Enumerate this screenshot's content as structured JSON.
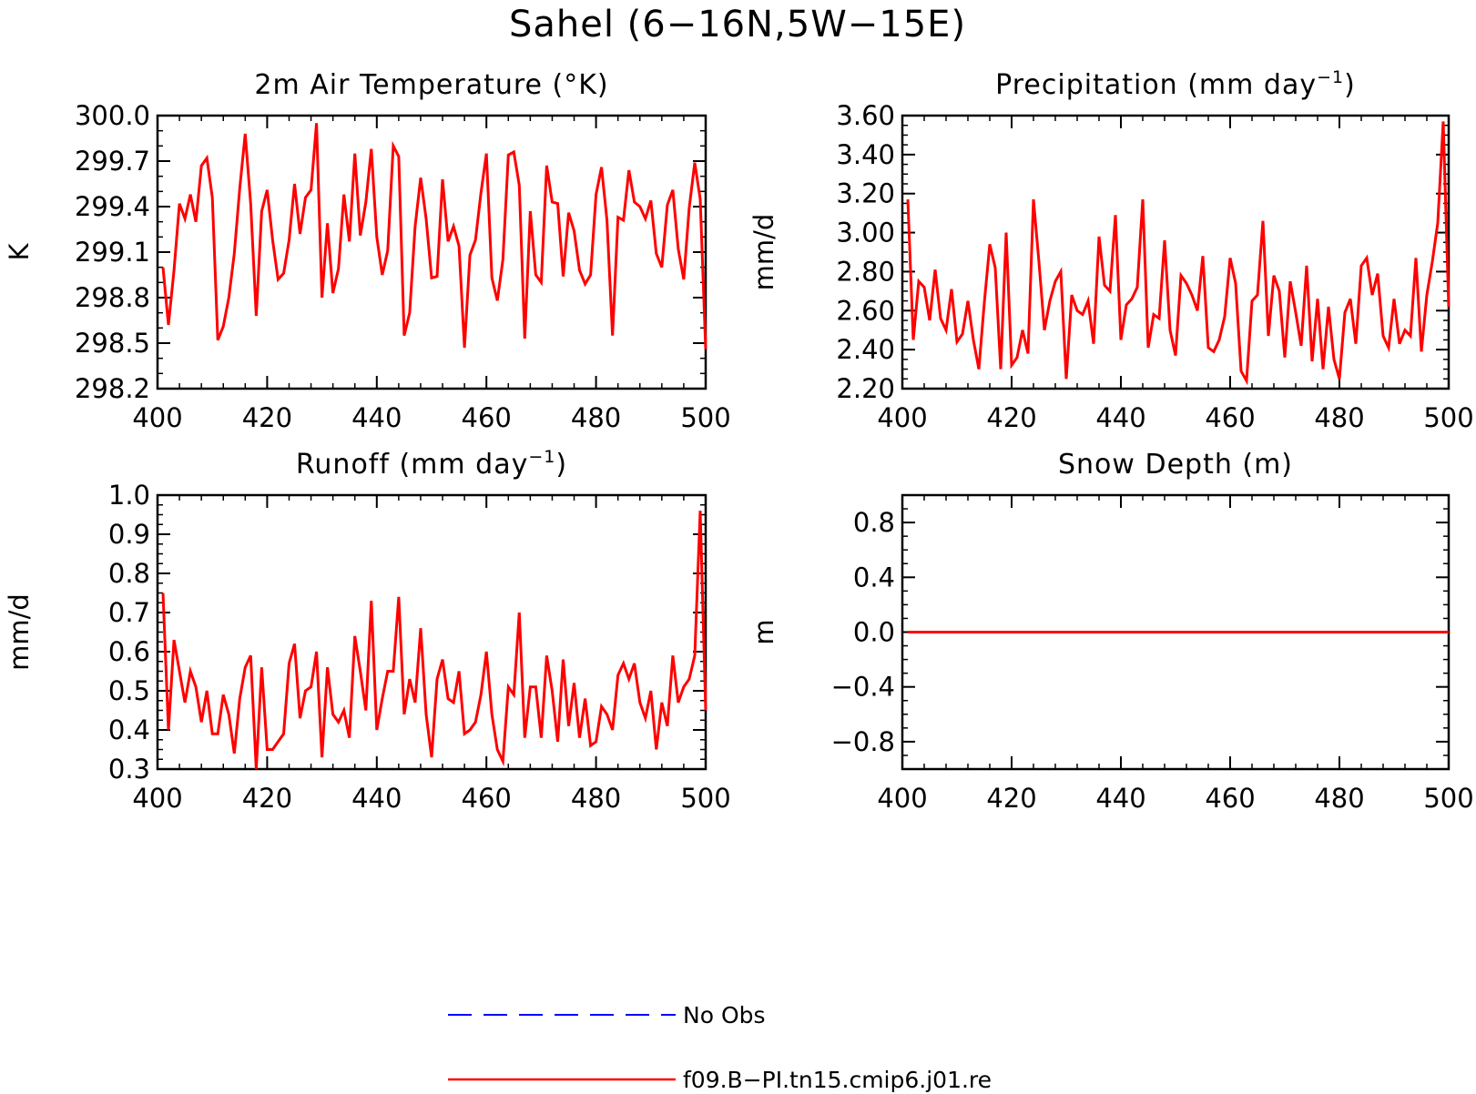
{
  "figure": {
    "title": "Sahel (6−16N,5W−15E)"
  },
  "colors": {
    "model_series": "#ff0000",
    "obs_series": "#0000ff",
    "axes": "#000000"
  },
  "legend": {
    "items": [
      {
        "label": "No Obs",
        "style": "dashed",
        "color": "#0000ff"
      },
      {
        "label": "f09.B−PI.tn15.cmip6.j01.re",
        "style": "solid",
        "color": "#ff0000"
      }
    ]
  },
  "chart_data": [
    {
      "type": "line",
      "title": "2m Air Temperature (°K)",
      "title_superscript": "",
      "title_suffix": "",
      "xlabel": "",
      "ylabel": "K",
      "xlim": [
        400,
        500
      ],
      "ylim": [
        298.2,
        300.0
      ],
      "xticks": [
        400,
        420,
        440,
        460,
        480,
        500
      ],
      "yticks": [
        298.2,
        298.5,
        298.8,
        299.1,
        299.4,
        299.7,
        300.0
      ],
      "ytick_labels": [
        "298.2",
        "298.5",
        "298.8",
        "299.1",
        "299.4",
        "299.7",
        "300.0"
      ],
      "x_minor_step": 4,
      "y_minor_step": 0.1,
      "grid": false,
      "series": [
        {
          "name": "f09.B−PI.tn15.cmip6.j01.re",
          "x_start": 401,
          "x_step": 1,
          "values": [
            299.0,
            298.62,
            298.98,
            299.42,
            299.32,
            299.48,
            299.3,
            299.67,
            299.72,
            299.46,
            298.52,
            298.61,
            298.8,
            299.09,
            299.52,
            299.88,
            299.42,
            298.68,
            299.37,
            299.51,
            299.18,
            298.92,
            298.96,
            299.18,
            299.55,
            299.22,
            299.46,
            299.51,
            299.95,
            298.8,
            299.29,
            298.83,
            298.99,
            299.48,
            299.17,
            299.75,
            299.21,
            299.43,
            299.78,
            299.2,
            298.95,
            299.11,
            299.8,
            299.73,
            298.55,
            298.7,
            299.27,
            299.59,
            299.32,
            298.93,
            298.94,
            299.58,
            299.17,
            299.27,
            299.14,
            298.47,
            299.08,
            299.18,
            299.49,
            299.75,
            298.93,
            298.78,
            299.05,
            299.74,
            299.76,
            299.54,
            298.53,
            299.37,
            298.95,
            298.9,
            299.67,
            299.43,
            299.42,
            298.94,
            299.36,
            299.24,
            298.98,
            298.89,
            298.95,
            299.48,
            299.66,
            299.31,
            298.55,
            299.33,
            299.31,
            299.64,
            299.43,
            299.4,
            299.32,
            299.44,
            299.09,
            299.0,
            299.41,
            299.51,
            299.12,
            298.92,
            299.39,
            299.69,
            299.45,
            298.46
          ]
        }
      ]
    },
    {
      "type": "line",
      "title": "Precipitation (mm day",
      "title_superscript": "−1",
      "title_suffix": ")",
      "xlabel": "",
      "ylabel": "mm/d",
      "xlim": [
        400,
        500
      ],
      "ylim": [
        2.2,
        3.6
      ],
      "xticks": [
        400,
        420,
        440,
        460,
        480,
        500
      ],
      "yticks": [
        2.2,
        2.4,
        2.6,
        2.8,
        3.0,
        3.2,
        3.4,
        3.6
      ],
      "ytick_labels": [
        "2.20",
        "2.40",
        "2.60",
        "2.80",
        "3.00",
        "3.20",
        "3.40",
        "3.60"
      ],
      "x_minor_step": 4,
      "y_minor_step": 0.05,
      "grid": false,
      "series": [
        {
          "name": "f09.B−PI.tn15.cmip6.j01.re",
          "x_start": 401,
          "x_step": 1,
          "values": [
            3.17,
            2.45,
            2.75,
            2.72,
            2.55,
            2.81,
            2.56,
            2.5,
            2.71,
            2.44,
            2.48,
            2.65,
            2.45,
            2.3,
            2.64,
            2.94,
            2.82,
            2.3,
            3.0,
            2.32,
            2.36,
            2.5,
            2.38,
            3.17,
            2.85,
            2.5,
            2.65,
            2.75,
            2.8,
            2.25,
            2.68,
            2.6,
            2.58,
            2.65,
            2.43,
            2.98,
            2.73,
            2.7,
            3.09,
            2.45,
            2.63,
            2.66,
            2.72,
            3.17,
            2.41,
            2.58,
            2.56,
            2.96,
            2.5,
            2.37,
            2.78,
            2.74,
            2.68,
            2.6,
            2.88,
            2.41,
            2.39,
            2.45,
            2.57,
            2.87,
            2.74,
            2.29,
            2.24,
            2.65,
            2.68,
            3.06,
            2.47,
            2.78,
            2.7,
            2.36,
            2.75,
            2.59,
            2.42,
            2.83,
            2.34,
            2.66,
            2.3,
            2.62,
            2.35,
            2.25,
            2.59,
            2.66,
            2.43,
            2.83,
            2.87,
            2.68,
            2.79,
            2.47,
            2.41,
            2.66,
            2.43,
            2.5,
            2.47,
            2.87,
            2.39,
            2.68,
            2.85,
            3.05,
            3.57,
            2.62
          ]
        }
      ]
    },
    {
      "type": "line",
      "title": "Runoff (mm day",
      "title_superscript": "−1",
      "title_suffix": ")",
      "xlabel": "",
      "ylabel": "mm/d",
      "xlim": [
        400,
        500
      ],
      "ylim": [
        0.3,
        1.0
      ],
      "xticks": [
        400,
        420,
        440,
        460,
        480,
        500
      ],
      "yticks": [
        0.3,
        0.4,
        0.5,
        0.6,
        0.7,
        0.8,
        0.9,
        1.0
      ],
      "ytick_labels": [
        "0.3",
        "0.4",
        "0.5",
        "0.6",
        "0.7",
        "0.8",
        "0.9",
        "1.0"
      ],
      "x_minor_step": 4,
      "y_minor_step": 0.025,
      "grid": false,
      "series": [
        {
          "name": "f09.B−PI.tn15.cmip6.j01.re",
          "x_start": 401,
          "x_step": 1,
          "values": [
            0.75,
            0.4,
            0.63,
            0.55,
            0.47,
            0.55,
            0.51,
            0.42,
            0.5,
            0.39,
            0.39,
            0.49,
            0.44,
            0.34,
            0.48,
            0.56,
            0.59,
            0.3,
            0.56,
            0.35,
            0.35,
            0.37,
            0.39,
            0.57,
            0.62,
            0.43,
            0.5,
            0.51,
            0.6,
            0.33,
            0.56,
            0.44,
            0.42,
            0.45,
            0.38,
            0.64,
            0.55,
            0.45,
            0.73,
            0.4,
            0.48,
            0.55,
            0.55,
            0.74,
            0.44,
            0.53,
            0.47,
            0.66,
            0.44,
            0.33,
            0.53,
            0.58,
            0.48,
            0.47,
            0.55,
            0.39,
            0.4,
            0.42,
            0.49,
            0.6,
            0.44,
            0.35,
            0.32,
            0.51,
            0.49,
            0.7,
            0.38,
            0.51,
            0.51,
            0.38,
            0.59,
            0.5,
            0.37,
            0.58,
            0.41,
            0.52,
            0.38,
            0.48,
            0.36,
            0.37,
            0.46,
            0.44,
            0.4,
            0.54,
            0.57,
            0.53,
            0.57,
            0.47,
            0.43,
            0.5,
            0.35,
            0.47,
            0.41,
            0.59,
            0.47,
            0.51,
            0.53,
            0.59,
            0.96,
            0.45
          ]
        }
      ]
    },
    {
      "type": "line",
      "title": "Snow Depth (m)",
      "title_superscript": "",
      "title_suffix": "",
      "xlabel": "",
      "ylabel": "m",
      "xlim": [
        400,
        500
      ],
      "ylim": [
        -1.0,
        1.0
      ],
      "xticks": [
        400,
        420,
        440,
        460,
        480,
        500
      ],
      "yticks": [
        -0.8,
        -0.4,
        0.0,
        0.4,
        0.8
      ],
      "ytick_labels": [
        "−0.8",
        "−0.4",
        "0.0",
        "0.4",
        "0.8"
      ],
      "x_minor_step": 4,
      "y_minor_step": 0.1,
      "grid": false,
      "series": [
        {
          "name": "f09.B−PI.tn15.cmip6.j01.re",
          "x_start": 401,
          "x_step": 1,
          "values": [
            0,
            0,
            0,
            0,
            0,
            0,
            0,
            0,
            0,
            0,
            0,
            0,
            0,
            0,
            0,
            0,
            0,
            0,
            0,
            0,
            0,
            0,
            0,
            0,
            0,
            0,
            0,
            0,
            0,
            0,
            0,
            0,
            0,
            0,
            0,
            0,
            0,
            0,
            0,
            0,
            0,
            0,
            0,
            0,
            0,
            0,
            0,
            0,
            0,
            0,
            0,
            0,
            0,
            0,
            0,
            0,
            0,
            0,
            0,
            0,
            0,
            0,
            0,
            0,
            0,
            0,
            0,
            0,
            0,
            0,
            0,
            0,
            0,
            0,
            0,
            0,
            0,
            0,
            0,
            0,
            0,
            0,
            0,
            0,
            0,
            0,
            0,
            0,
            0,
            0,
            0,
            0,
            0,
            0,
            0,
            0,
            0,
            0,
            0,
            0
          ]
        }
      ]
    }
  ]
}
